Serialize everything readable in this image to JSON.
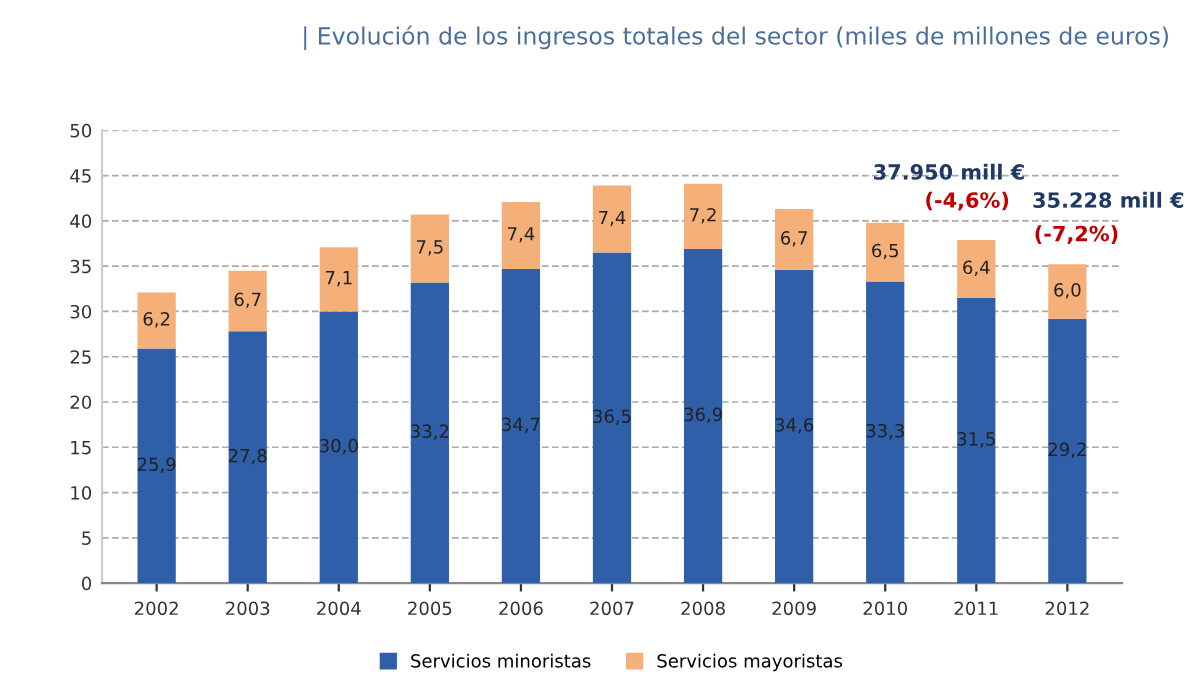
{
  "chart_data": {
    "type": "bar",
    "stacked": true,
    "title": "| Evolución de los ingresos totales del sector (miles de millones de euros)",
    "categories": [
      "2002",
      "2003",
      "2004",
      "2005",
      "2006",
      "2007",
      "2008",
      "2009",
      "2010",
      "2011",
      "2012"
    ],
    "series": [
      {
        "name": "Servicios minoristas",
        "color": "#2e5fa8",
        "values": [
          25.9,
          27.8,
          30.0,
          33.2,
          34.7,
          36.5,
          36.9,
          34.6,
          33.3,
          31.5,
          29.2
        ],
        "value_labels": [
          "25,9",
          "27,8",
          "30,0",
          "33,2",
          "34,7",
          "36,5",
          "36,9",
          "34,6",
          "33,3",
          "31,5",
          "29,2"
        ]
      },
      {
        "name": "Servicios mayoristas",
        "color": "#f5b07a",
        "values": [
          6.2,
          6.7,
          7.1,
          7.5,
          7.4,
          7.4,
          7.2,
          6.7,
          6.5,
          6.4,
          6.0
        ],
        "value_labels": [
          "6,2",
          "6,7",
          "7,1",
          "7,5",
          "7,4",
          "7,4",
          "7,2",
          "6,7",
          "6,5",
          "6,4",
          "6,0"
        ]
      }
    ],
    "ylim": [
      0,
      50
    ],
    "yticks": [
      0,
      5,
      10,
      15,
      20,
      25,
      30,
      35,
      40,
      45,
      50
    ],
    "grid": "y",
    "legend": "bottom",
    "annotations": [
      {
        "text": "37.950 mill €",
        "x": "2011",
        "y": 37.9
      },
      {
        "text": "(-4,6%)",
        "x": "2011",
        "y": 37.9
      },
      {
        "text": "35.228 mill €",
        "x": "2012",
        "y": 35.2
      },
      {
        "text": "(-7,2%)",
        "x": "2012",
        "y": 35.2
      }
    ]
  }
}
